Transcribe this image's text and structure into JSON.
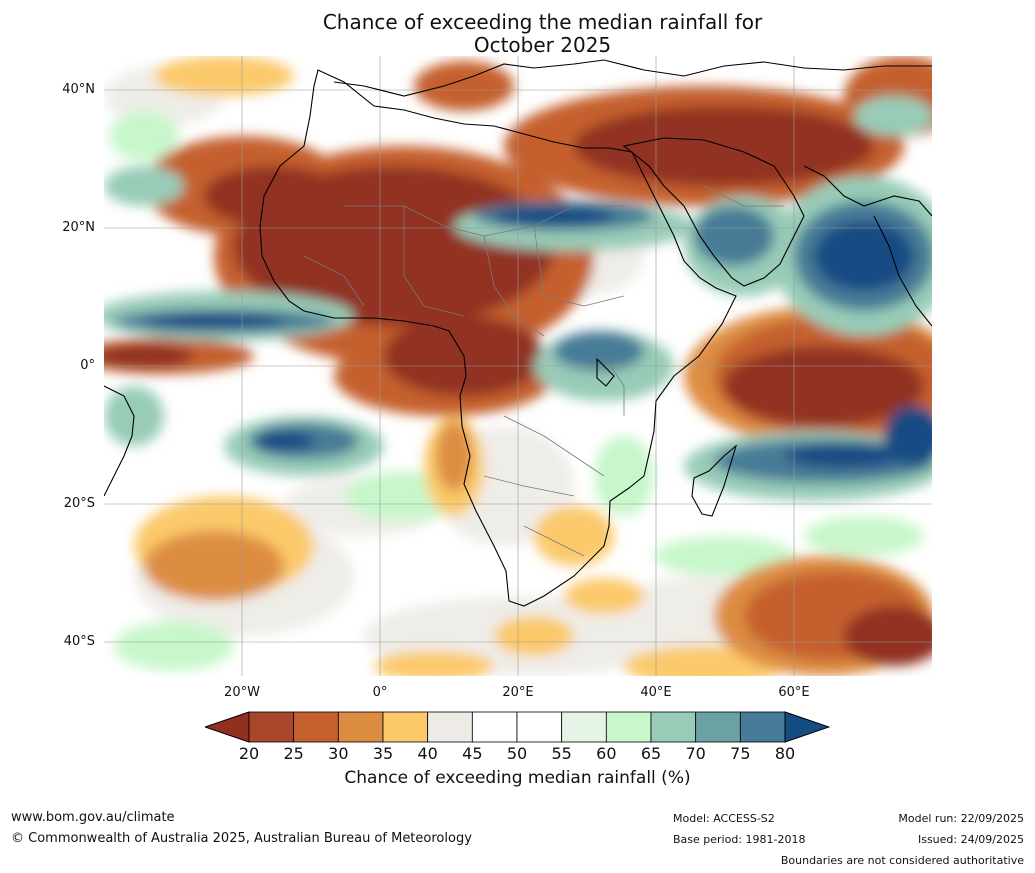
{
  "title": {
    "line1": "Chance of exceeding the median rainfall for",
    "line2": "October 2025"
  },
  "map": {
    "lat_labels": [
      "40°N",
      "20°N",
      "0°",
      "20°S",
      "40°S"
    ],
    "lon_labels": [
      "20°W",
      "0°",
      "20°E",
      "40°E",
      "60°E"
    ],
    "region": "Africa and surrounding oceans",
    "graticule_lats": [
      40,
      20,
      0,
      -20,
      -40
    ],
    "graticule_lons": [
      -20,
      0,
      20,
      40,
      60
    ],
    "extent": {
      "lon_min": -40,
      "lon_max": 80,
      "lat_min": -45,
      "lat_max": 45
    }
  },
  "legend": {
    "ticks": [
      "20",
      "25",
      "30",
      "35",
      "40",
      "45",
      "50",
      "55",
      "60",
      "65",
      "70",
      "75",
      "80"
    ],
    "colors": [
      "#913021",
      "#a8452a",
      "#c5612f",
      "#dd8d42",
      "#fbc96a",
      "#eeebe6",
      "#ffffff",
      "#ffffff",
      "#e6f4e7",
      "#c8f7cb",
      "#98ccb7",
      "#6aa2a4",
      "#467c97"
    ],
    "under_color": "#913021",
    "over_color": "#154c84",
    "title": "Chance of exceeding median rainfall (%)"
  },
  "footer": {
    "website": "www.bom.gov.au/climate",
    "copyright": "© Commonwealth of Australia 2025, Australian Bureau of Meteorology",
    "model": "Model: ACCESS-S2",
    "base_period": "Base period: 1981-2018",
    "model_run": "Model run: 22/09/2025",
    "issued": "Issued: 24/09/2025",
    "disclaimer": "Boundaries are not considered authoritative"
  }
}
